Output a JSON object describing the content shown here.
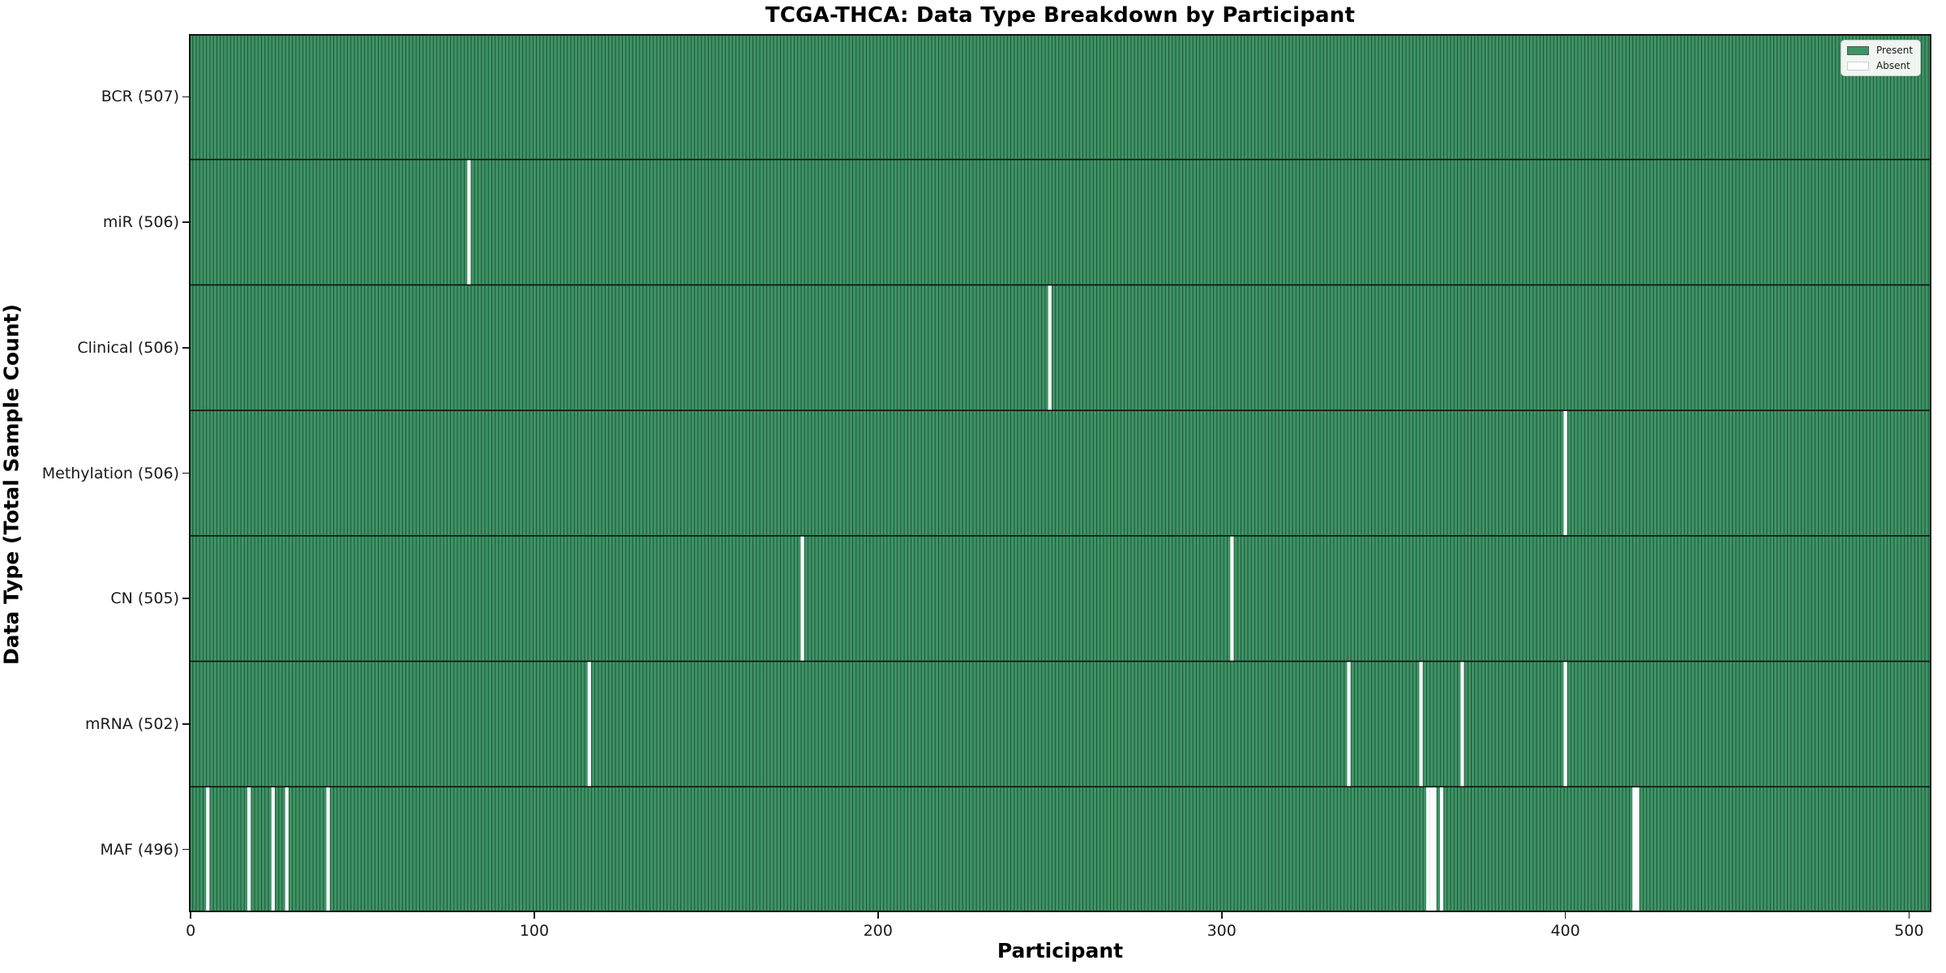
{
  "chart_data": {
    "type": "heatmap",
    "title": "TCGA-THCA: Data Type Breakdown by Participant",
    "xlabel": "Participant",
    "ylabel": "Data Type (Total Sample Count)",
    "n_participants": 507,
    "x_ticks": [
      0,
      100,
      200,
      300,
      400,
      500
    ],
    "grid": false,
    "legend_position": "upper right",
    "legend_items": [
      {
        "label": "Present",
        "color": "#3e9466"
      },
      {
        "label": "Absent",
        "color": "#ffffff"
      }
    ],
    "rows": [
      {
        "label": "BCR (507)",
        "present_count": 507,
        "absent_participants": []
      },
      {
        "label": "miR (506)",
        "present_count": 506,
        "absent_participants": [
          81
        ]
      },
      {
        "label": "Clinical (506)",
        "present_count": 506,
        "absent_participants": [
          250
        ]
      },
      {
        "label": "Methylation (506)",
        "present_count": 506,
        "absent_participants": [
          400
        ]
      },
      {
        "label": "CN (505)",
        "present_count": 505,
        "absent_participants": [
          178,
          303
        ]
      },
      {
        "label": "mRNA (502)",
        "present_count": 502,
        "absent_participants": [
          116,
          337,
          358,
          370,
          400
        ]
      },
      {
        "label": "MAF (496)",
        "present_count": 496,
        "absent_participants": [
          5,
          17,
          24,
          28,
          40,
          360,
          361,
          362,
          364,
          420,
          421
        ]
      }
    ],
    "colors": {
      "present_fill": "#3e9466",
      "present_edge": "#1f5434",
      "absent": "#ffffff",
      "separator": "#111111",
      "spine": "#111111"
    }
  }
}
